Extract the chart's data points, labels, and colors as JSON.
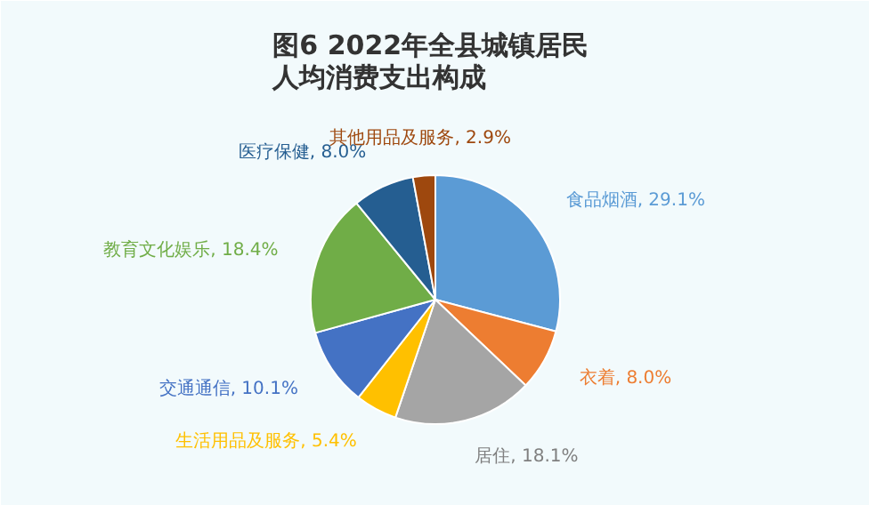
{
  "chart_data": {
    "type": "pie",
    "title": "图6  2022年全县城镇居民人均消费支出构成",
    "categories": [
      "食品烟酒",
      "衣着",
      "居住",
      "生活用品及服务",
      "交通通信",
      "教育文化娱乐",
      "医疗保健",
      "其他用品及服务"
    ],
    "values": [
      29.1,
      8.0,
      18.1,
      5.4,
      10.1,
      18.4,
      8.0,
      2.9
    ],
    "value_labels": [
      "29.1%",
      "8.0%",
      "18.1%",
      "5.4%",
      "10.1%",
      "18.4%",
      "8.0%",
      "2.9%"
    ],
    "colors": [
      "#5b9bd5",
      "#ed7d31",
      "#a5a5a5",
      "#ffc000",
      "#4472c4",
      "#70ad47",
      "#255e91",
      "#9e480e"
    ]
  }
}
